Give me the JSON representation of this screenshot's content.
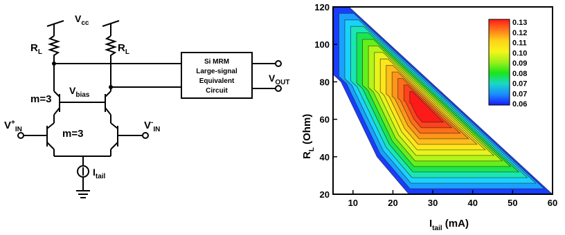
{
  "circuit": {
    "vcc": {
      "main": "V",
      "sub": "cc"
    },
    "rl_left": {
      "main": "R",
      "sub": "L"
    },
    "rl_right": {
      "main": "R",
      "sub": "L"
    },
    "vbias": {
      "main": "V",
      "sub": "bias"
    },
    "m3_top": "m=3",
    "m3_bottom": "m=3",
    "vin_plus": {
      "main": "V",
      "sup": "+",
      "sub": "IN"
    },
    "vin_minus": {
      "main": "V",
      "sup": "-",
      "sub": "IN"
    },
    "itail": {
      "main": "I",
      "sub": "tail"
    },
    "block_lines": [
      "Si MRM",
      "Large-signal",
      "Equivalent",
      "Circuit"
    ],
    "vout": {
      "main": "V",
      "sub": "OUT"
    }
  },
  "chart_data": {
    "type": "heatmap",
    "subtype": "filled-contour",
    "xlabel": {
      "main": "I",
      "sub": "tail",
      "rest": " (mA)"
    },
    "ylabel": {
      "main": "R",
      "sub": "L",
      "rest": " (Ohm)"
    },
    "xlim": [
      5,
      60
    ],
    "ylim": [
      20,
      120
    ],
    "x_ticks": [
      10,
      20,
      30,
      40,
      50,
      60
    ],
    "y_ticks": [
      20,
      40,
      60,
      80,
      100,
      120
    ],
    "colorbar_ticks": [
      "0.13",
      "0.12",
      "0.11",
      "0.10",
      "0.09",
      "0.08",
      "0.07",
      "0.07",
      "0.06"
    ],
    "colorbar_colors": [
      "#ff1a1a",
      "#ff7a1a",
      "#ffd21a",
      "#f5f51a",
      "#9cf01a",
      "#1ae61a",
      "#1ad8c8",
      "#1a8cff",
      "#1a1aff"
    ],
    "legend_position": "top-right",
    "contour_levels": [
      0.06,
      0.065,
      0.07,
      0.075,
      0.08,
      0.085,
      0.09,
      0.095,
      0.1,
      0.105,
      0.11,
      0.115,
      0.12,
      0.125
    ],
    "level_colors": [
      "#1a3cff",
      "#1aa0ff",
      "#1ad2ff",
      "#1ae6b4",
      "#1ae650",
      "#64f01a",
      "#b4f51a",
      "#e6f51a",
      "#ffe61a",
      "#ffbe1a",
      "#ff961a",
      "#ff6e1a",
      "#ff421a",
      "#ff1a1a"
    ],
    "region_boundary": [
      [
        5,
        120
      ],
      [
        9,
        120
      ],
      [
        60,
        20
      ],
      [
        24,
        20
      ],
      [
        16,
        40
      ],
      [
        7,
        80
      ],
      [
        5,
        84
      ]
    ],
    "peak": [
      28,
      66
    ]
  }
}
